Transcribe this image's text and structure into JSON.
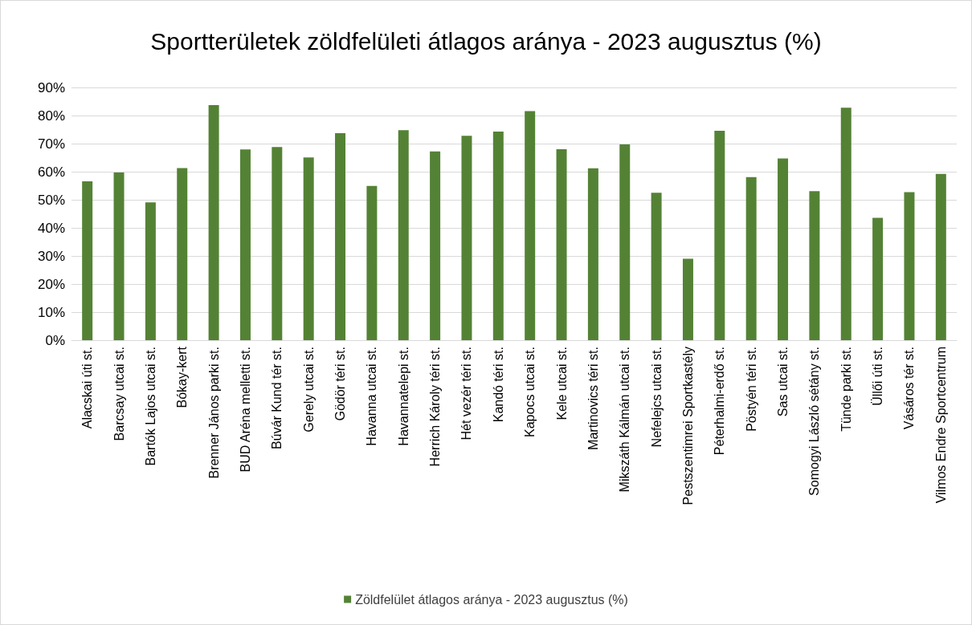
{
  "chart_data": {
    "type": "bar",
    "title": "Sportterületek zöldfelületi átlagos aránya - 2023 augusztus (%)",
    "categories": [
      "Alacskai úti st.",
      "Barcsay utcai st.",
      "Bartók Lajos utcai st.",
      "Bókay-kert",
      "Brenner János parki st.",
      "BUD Aréna melletti st.",
      "Búvár Kund tér st.",
      "Gerely utcai st.",
      "Gödör téri st.",
      "Havanna utcai st.",
      "Havannatelepi st.",
      "Herrich Károly téri st.",
      "Hét vezér téri st.",
      "Kandó téri st.",
      "Kapocs utcai st.",
      "Kele utcai st.",
      "Martinovics téri st.",
      "Mikszáth Kálmán utcai st.",
      "Nefelejcs utcai st.",
      "Pestszentimrei Sportkastély",
      "Péterhalmi-erdő st.",
      "Pöstyén téri st.",
      "Sas utcai st.",
      "Somogyi László sétány st.",
      "Tünde parki st.",
      "Üllői úti st.",
      "Vásáros tér st.",
      "Vilmos Endre Sportcentrum"
    ],
    "series": [
      {
        "name": "Zöldfelület átlagos aránya - 2023 augusztus (%)",
        "color": "#548235",
        "values": [
          56.6,
          59.7,
          49.1,
          61.3,
          83.7,
          67.9,
          68.8,
          65.1,
          73.7,
          54.9,
          74.8,
          67.2,
          72.8,
          74.3,
          81.6,
          68,
          61.2,
          69.7,
          52.5,
          29,
          74.6,
          58.1,
          64.7,
          53.1,
          82.8,
          43.6,
          52.7,
          59.2
        ]
      }
    ],
    "ylim": [
      0,
      90
    ],
    "yticks": [
      {
        "value": 0,
        "label": "0%"
      },
      {
        "value": 10,
        "label": "10%"
      },
      {
        "value": 20,
        "label": "20%"
      },
      {
        "value": 30,
        "label": "30%"
      },
      {
        "value": 40,
        "label": "40%"
      },
      {
        "value": 50,
        "label": "50%"
      },
      {
        "value": 60,
        "label": "60%"
      },
      {
        "value": 70,
        "label": "70%"
      },
      {
        "value": 80,
        "label": "80%"
      },
      {
        "value": 90,
        "label": "90%"
      }
    ],
    "grid": "y",
    "legend": "bottom"
  }
}
